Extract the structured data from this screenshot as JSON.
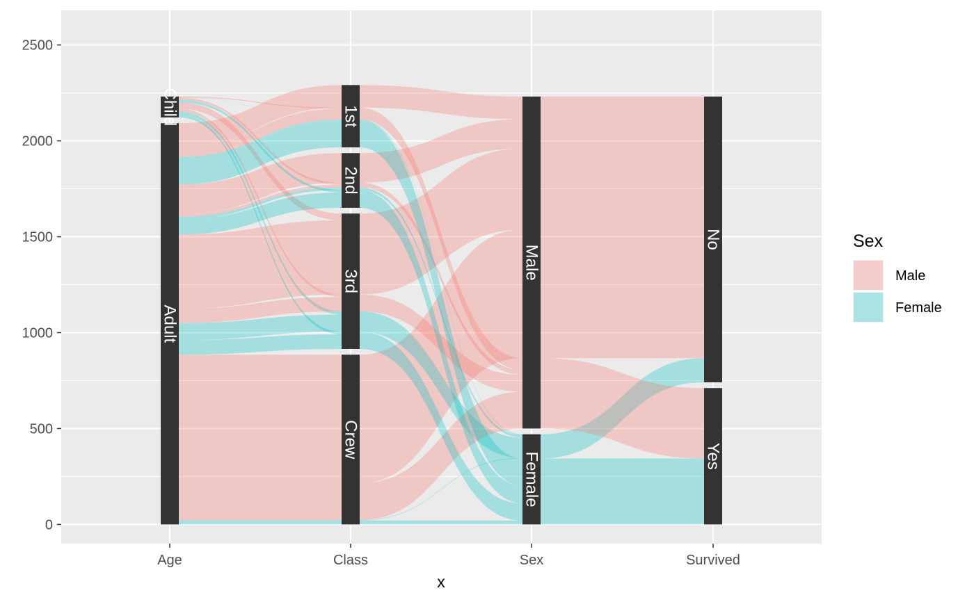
{
  "chart_data": {
    "type": "alluvial",
    "title": "",
    "xlabel": "x",
    "ylabel": "",
    "ylim": [
      -100,
      2680
    ],
    "y_ticks": [
      0,
      500,
      1000,
      1500,
      2000,
      2500
    ],
    "y_tick_labels": [
      "0",
      "500",
      "1000",
      "1500",
      "2000",
      "2500"
    ],
    "axes": [
      "Age",
      "Class",
      "Sex",
      "Survived"
    ],
    "strata": {
      "Age": [
        {
          "name": "Child",
          "count": 109
        },
        {
          "name": "Adult",
          "count": 2092
        }
      ],
      "Class": [
        {
          "name": "1st",
          "count": 325
        },
        {
          "name": "2nd",
          "count": 285
        },
        {
          "name": "3rd",
          "count": 706
        },
        {
          "name": "Crew",
          "count": 885
        }
      ],
      "Sex": [
        {
          "name": "Male",
          "count": 1731
        },
        {
          "name": "Female",
          "count": 470
        }
      ],
      "Survived": [
        {
          "name": "No",
          "count": 1490
        },
        {
          "name": "Yes",
          "count": 711
        }
      ]
    },
    "fill_variable": "Sex",
    "legend": {
      "title": "Sex",
      "entries": [
        {
          "label": "Male",
          "color": "#F8766D"
        },
        {
          "label": "Female",
          "color": "#00BFC4"
        }
      ],
      "position": "right"
    },
    "flows": [
      {
        "Age": "Child",
        "Class": "1st",
        "Sex": "Male",
        "Survived": "No",
        "count": 0
      },
      {
        "Age": "Child",
        "Class": "2nd",
        "Sex": "Male",
        "Survived": "No",
        "count": 0
      },
      {
        "Age": "Child",
        "Class": "3rd",
        "Sex": "Male",
        "Survived": "No",
        "count": 35
      },
      {
        "Age": "Child",
        "Class": "Crew",
        "Sex": "Male",
        "Survived": "No",
        "count": 0
      },
      {
        "Age": "Child",
        "Class": "1st",
        "Sex": "Female",
        "Survived": "No",
        "count": 0
      },
      {
        "Age": "Child",
        "Class": "2nd",
        "Sex": "Female",
        "Survived": "No",
        "count": 0
      },
      {
        "Age": "Child",
        "Class": "3rd",
        "Sex": "Female",
        "Survived": "No",
        "count": 17
      },
      {
        "Age": "Child",
        "Class": "Crew",
        "Sex": "Female",
        "Survived": "No",
        "count": 0
      },
      {
        "Age": "Adult",
        "Class": "1st",
        "Sex": "Male",
        "Survived": "No",
        "count": 118
      },
      {
        "Age": "Adult",
        "Class": "2nd",
        "Sex": "Male",
        "Survived": "No",
        "count": 154
      },
      {
        "Age": "Adult",
        "Class": "3rd",
        "Sex": "Male",
        "Survived": "No",
        "count": 387
      },
      {
        "Age": "Adult",
        "Class": "Crew",
        "Sex": "Male",
        "Survived": "No",
        "count": 670
      },
      {
        "Age": "Adult",
        "Class": "1st",
        "Sex": "Female",
        "Survived": "No",
        "count": 4
      },
      {
        "Age": "Adult",
        "Class": "2nd",
        "Sex": "Female",
        "Survived": "No",
        "count": 13
      },
      {
        "Age": "Adult",
        "Class": "3rd",
        "Sex": "Female",
        "Survived": "No",
        "count": 89
      },
      {
        "Age": "Adult",
        "Class": "Crew",
        "Sex": "Female",
        "Survived": "No",
        "count": 3
      },
      {
        "Age": "Child",
        "Class": "1st",
        "Sex": "Male",
        "Survived": "Yes",
        "count": 5
      },
      {
        "Age": "Child",
        "Class": "2nd",
        "Sex": "Male",
        "Survived": "Yes",
        "count": 11
      },
      {
        "Age": "Child",
        "Class": "3rd",
        "Sex": "Male",
        "Survived": "Yes",
        "count": 13
      },
      {
        "Age": "Child",
        "Class": "Crew",
        "Sex": "Male",
        "Survived": "Yes",
        "count": 0
      },
      {
        "Age": "Child",
        "Class": "1st",
        "Sex": "Female",
        "Survived": "Yes",
        "count": 1
      },
      {
        "Age": "Child",
        "Class": "2nd",
        "Sex": "Female",
        "Survived": "Yes",
        "count": 13
      },
      {
        "Age": "Child",
        "Class": "3rd",
        "Sex": "Female",
        "Survived": "Yes",
        "count": 14
      },
      {
        "Age": "Child",
        "Class": "Crew",
        "Sex": "Female",
        "Survived": "Yes",
        "count": 0
      },
      {
        "Age": "Adult",
        "Class": "1st",
        "Sex": "Male",
        "Survived": "Yes",
        "count": 57
      },
      {
        "Age": "Adult",
        "Class": "2nd",
        "Sex": "Male",
        "Survived": "Yes",
        "count": 14
      },
      {
        "Age": "Adult",
        "Class": "3rd",
        "Sex": "Male",
        "Survived": "Yes",
        "count": 75
      },
      {
        "Age": "Adult",
        "Class": "Crew",
        "Sex": "Male",
        "Survived": "Yes",
        "count": 192
      },
      {
        "Age": "Adult",
        "Class": "1st",
        "Sex": "Female",
        "Survived": "Yes",
        "count": 140
      },
      {
        "Age": "Adult",
        "Class": "2nd",
        "Sex": "Female",
        "Survived": "Yes",
        "count": 80
      },
      {
        "Age": "Adult",
        "Class": "3rd",
        "Sex": "Female",
        "Survived": "Yes",
        "count": 76
      },
      {
        "Age": "Adult",
        "Class": "Crew",
        "Sex": "Female",
        "Survived": "Yes",
        "count": 20
      }
    ]
  }
}
